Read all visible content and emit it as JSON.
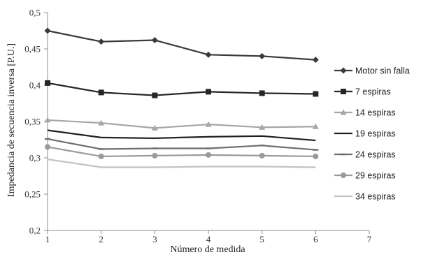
{
  "chart_data": {
    "type": "line",
    "title": "",
    "xlabel": "Número de medida",
    "ylabel": "Impedancia de secuencia inversa [P.U.]",
    "xlim": [
      1,
      7
    ],
    "ylim": [
      0.2,
      0.5
    ],
    "x_ticks": [
      "1",
      "2",
      "3",
      "4",
      "5",
      "6",
      "7"
    ],
    "y_ticks": [
      "0,2",
      "0,25",
      "0,3",
      "0,35",
      "0,4",
      "0,45",
      "0,5"
    ],
    "grid": false,
    "legend_position": "right",
    "x": [
      1,
      2,
      3,
      4,
      5,
      6
    ],
    "series": [
      {
        "name": "Motor sin falla",
        "values": [
          0.475,
          0.46,
          0.462,
          0.442,
          0.44,
          0.435
        ],
        "color": "#3a3a3a",
        "marker": "diamond"
      },
      {
        "name": "7 espiras",
        "values": [
          0.403,
          0.39,
          0.386,
          0.391,
          0.389,
          0.388
        ],
        "color": "#262626",
        "marker": "square"
      },
      {
        "name": "14 espiras",
        "values": [
          0.352,
          0.348,
          0.341,
          0.346,
          0.342,
          0.343
        ],
        "color": "#a6a6a6",
        "marker": "triangle"
      },
      {
        "name": "19 espiras",
        "values": [
          0.338,
          0.328,
          0.327,
          0.329,
          0.33,
          0.324
        ],
        "color": "#1f1f1f",
        "marker": "none"
      },
      {
        "name": "24 espiras",
        "values": [
          0.326,
          0.312,
          0.313,
          0.313,
          0.317,
          0.311
        ],
        "color": "#6e6e6e",
        "marker": "dash"
      },
      {
        "name": "29 espiras",
        "values": [
          0.315,
          0.302,
          0.303,
          0.304,
          0.303,
          0.302
        ],
        "color": "#9a9a9a",
        "marker": "circle"
      },
      {
        "name": "34 espiras",
        "values": [
          0.298,
          0.287,
          0.287,
          0.288,
          0.288,
          0.287
        ],
        "color": "#c2c2c2",
        "marker": "none"
      }
    ]
  }
}
